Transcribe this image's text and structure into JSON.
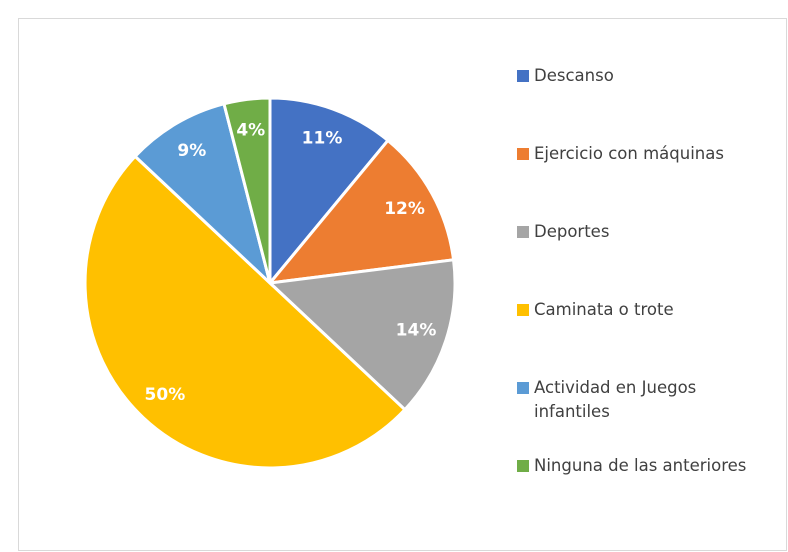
{
  "chart_data": {
    "type": "pie",
    "categories": [
      "Descanso",
      "Ejercicio con máquinas",
      "Deportes",
      "Caminata o trote",
      "Actividad en Juegos infantiles",
      "Ninguna de las anteriores"
    ],
    "values": [
      11,
      12,
      14,
      50,
      9,
      4
    ],
    "value_labels": [
      "11%",
      "12%",
      "14%",
      "50%",
      "9%",
      "4%"
    ],
    "colors": [
      "#4472c4",
      "#ed7d31",
      "#a5a5a5",
      "#ffc000",
      "#5b9bd5",
      "#70ad47"
    ],
    "legend": "right"
  }
}
